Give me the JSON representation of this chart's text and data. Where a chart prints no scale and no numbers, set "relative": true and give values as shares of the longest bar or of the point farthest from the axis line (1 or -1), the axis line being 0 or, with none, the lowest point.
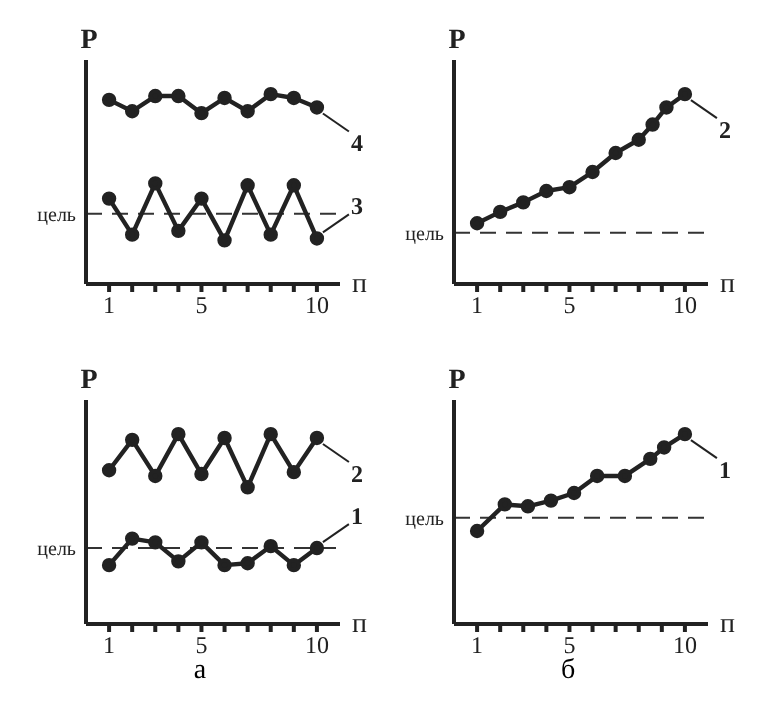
{
  "chart_data": [
    {
      "type": "line",
      "legend": "right",
      "ylabel": "P",
      "xlabel": "п",
      "relative": true,
      "xlim": [
        0,
        11
      ],
      "xticks": [
        1,
        {
          "value": 2,
          "label": null
        },
        {
          "value": 3,
          "label": null
        },
        {
          "value": 4,
          "label": null
        },
        5,
        {
          "value": 6,
          "label": null
        },
        {
          "value": 7,
          "label": null
        },
        {
          "value": 8,
          "label": null
        },
        {
          "value": 9,
          "label": null
        },
        10
      ],
      "tick_labels": "x",
      "marker": "circle",
      "line_style": "solid",
      "ref_lines": [
        {
          "axis": "y",
          "value": 0.37,
          "label": "цель",
          "line_style": "dashed"
        }
      ],
      "series": [
        {
          "name": "4",
          "color": "#222222",
          "x": [
            1,
            2,
            3,
            4,
            5,
            6,
            7,
            8,
            9,
            10
          ],
          "values": [
            0.97,
            0.91,
            0.99,
            0.99,
            0.9,
            0.98,
            0.91,
            1,
            0.98,
            0.93
          ]
        },
        {
          "name": "3",
          "color": "#222222",
          "x": [
            1,
            2,
            3,
            4,
            5,
            6,
            7,
            8,
            9,
            10
          ],
          "values": [
            0.45,
            0.26,
            0.53,
            0.28,
            0.45,
            0.23,
            0.52,
            0.26,
            0.52,
            0.24
          ]
        }
      ]
    },
    {
      "type": "line",
      "legend": "right",
      "ylabel": "P",
      "xlabel": "п",
      "relative": true,
      "xlim": [
        0,
        11
      ],
      "xticks": [
        1,
        {
          "value": 2,
          "label": null
        },
        {
          "value": 3,
          "label": null
        },
        {
          "value": 4,
          "label": null
        },
        5,
        {
          "value": 6,
          "label": null
        },
        {
          "value": 7,
          "label": null
        },
        {
          "value": 8,
          "label": null
        },
        {
          "value": 9,
          "label": null
        },
        10
      ],
      "tick_labels": "x",
      "marker": "circle",
      "line_style": "solid",
      "ref_lines": [
        {
          "axis": "y",
          "value": 0.27,
          "label": "цель",
          "line_style": "dashed"
        }
      ],
      "series": [
        {
          "name": "2",
          "color": "#222222",
          "x": [
            1,
            2,
            3,
            4,
            5,
            6,
            7,
            8,
            8.6,
            9.2,
            10
          ],
          "values": [
            0.32,
            0.38,
            0.43,
            0.49,
            0.51,
            0.59,
            0.69,
            0.76,
            0.84,
            0.93,
            1
          ]
        }
      ]
    },
    {
      "type": "line",
      "legend": "right",
      "ylabel": "P",
      "xlabel": "п",
      "relative": true,
      "xlim": [
        0,
        11
      ],
      "xticks": [
        1,
        {
          "value": 2,
          "label": null
        },
        {
          "value": 3,
          "label": null
        },
        {
          "value": 4,
          "label": null
        },
        5,
        {
          "value": 6,
          "label": null
        },
        {
          "value": 7,
          "label": null
        },
        {
          "value": 8,
          "label": null
        },
        {
          "value": 9,
          "label": null
        },
        10
      ],
      "tick_labels": "x",
      "marker": "circle",
      "line_style": "solid",
      "annotations": [
        "а"
      ],
      "ref_lines": [
        {
          "axis": "y",
          "value": 0.4,
          "label": "цель",
          "line_style": "dashed"
        }
      ],
      "series": [
        {
          "name": "2",
          "color": "#222222",
          "x": [
            1,
            2,
            3,
            4,
            5,
            6,
            7,
            8,
            9,
            10
          ],
          "values": [
            0.81,
            0.97,
            0.78,
            1,
            0.79,
            0.98,
            0.72,
            1,
            0.8,
            0.98
          ]
        },
        {
          "name": "1",
          "color": "#222222",
          "x": [
            1,
            2,
            3,
            4,
            5,
            6,
            7,
            8,
            9,
            10
          ],
          "values": [
            0.31,
            0.45,
            0.43,
            0.33,
            0.43,
            0.31,
            0.32,
            0.41,
            0.31,
            0.4
          ]
        }
      ]
    },
    {
      "type": "line",
      "legend": "right",
      "ylabel": "P",
      "xlabel": "п",
      "relative": true,
      "xlim": [
        0,
        11
      ],
      "xticks": [
        1,
        {
          "value": 2,
          "label": null
        },
        {
          "value": 3,
          "label": null
        },
        {
          "value": 4,
          "label": null
        },
        5,
        {
          "value": 6,
          "label": null
        },
        {
          "value": 7,
          "label": null
        },
        {
          "value": 8,
          "label": null
        },
        {
          "value": 9,
          "label": null
        },
        10
      ],
      "tick_labels": "x",
      "marker": "circle",
      "line_style": "solid",
      "annotations": [
        "б"
      ],
      "ref_lines": [
        {
          "axis": "y",
          "value": 0.56,
          "label": "цель",
          "line_style": "dashed"
        }
      ],
      "series": [
        {
          "name": "1",
          "color": "#222222",
          "x": [
            1,
            2.2,
            3.2,
            4.2,
            5.2,
            6.2,
            7.4,
            8.5,
            9.1,
            10
          ],
          "values": [
            0.49,
            0.63,
            0.62,
            0.65,
            0.69,
            0.78,
            0.78,
            0.87,
            0.93,
            1
          ]
        }
      ]
    }
  ]
}
